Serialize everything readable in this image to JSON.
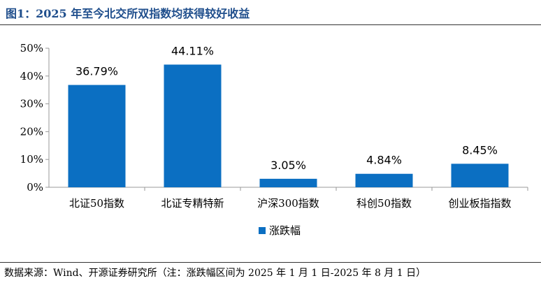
{
  "header": {
    "title": "图1：2025 年至今北交所双指数均获得较好收益"
  },
  "footer": {
    "source": "数据来源：Wind、开源证券研究所（注：涨跌幅区间为 2025 年 1 月 1 日-2025 年 8 月 1 日）"
  },
  "chart_data": {
    "type": "bar",
    "categories": [
      "北证50指数",
      "北证专精特新",
      "沪深300指数",
      "科创50指数",
      "创业板指指数"
    ],
    "series": [
      {
        "name": "涨跌幅",
        "values": [
          36.79,
          44.11,
          3.05,
          4.84,
          8.45
        ],
        "color": "#0b6fc2"
      }
    ],
    "data_labels": [
      "36.79%",
      "44.11%",
      "3.05%",
      "4.84%",
      "8.45%"
    ],
    "yticks": [
      "0%",
      "10%",
      "20%",
      "30%",
      "40%",
      "50%"
    ],
    "ylim": [
      0,
      50
    ],
    "legend": "bottom",
    "grid": false
  }
}
